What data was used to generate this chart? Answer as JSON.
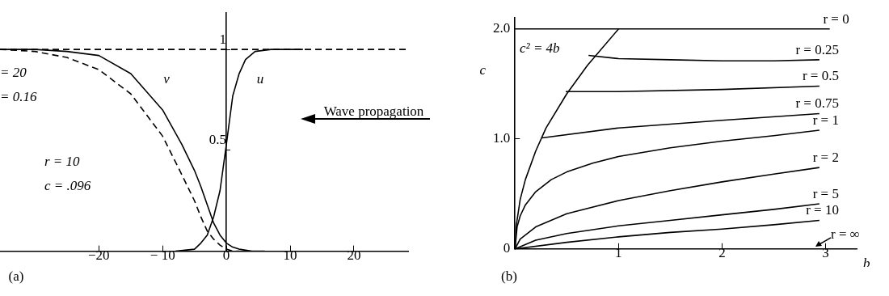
{
  "chart_data": [
    {
      "type": "line",
      "xlim": [
        -35.5,
        28.5
      ],
      "ylim": [
        0,
        1.18
      ],
      "xticks": [
        {
          "value": -20,
          "label": "−20"
        },
        {
          "value": -10,
          "label": "− 10"
        },
        0,
        10,
        20
      ],
      "yticks": [
        0.5,
        1
      ],
      "grid": false,
      "legend": false,
      "marker": "none",
      "ref_lines": [
        {
          "axis": "y",
          "value": 1,
          "line_style": "dashed",
          "color": "#000000"
        }
      ],
      "series": [
        {
          "color": "#000000",
          "line_style": "solid",
          "x": [
            -35.5,
            -30,
            -25,
            -20,
            -15,
            -10,
            -7,
            -5,
            -4,
            -3,
            -2,
            -1,
            0,
            1,
            2,
            4,
            6
          ],
          "values": [
            1,
            1,
            0.99,
            0.97,
            0.88,
            0.7,
            0.53,
            0.4,
            0.32,
            0.23,
            0.14,
            0.08,
            0.04,
            0.02,
            0.01,
            0,
            0
          ]
        },
        {
          "color": "#000000",
          "line_style": "dashed",
          "x": [
            -35.5,
            -30,
            -25,
            -20,
            -15,
            -10,
            -7,
            -5,
            -4,
            -3,
            -2,
            -1,
            0,
            1,
            2
          ],
          "values": [
            1,
            0.99,
            0.96,
            0.9,
            0.78,
            0.57,
            0.38,
            0.25,
            0.17,
            0.1,
            0.06,
            0.03,
            0.01,
            0,
            0
          ]
        },
        {
          "color": "#000000",
          "line_style": "solid",
          "x": [
            -8,
            -5,
            -4,
            -3,
            -2,
            -1,
            0,
            1,
            2,
            3,
            4.5,
            7,
            12
          ],
          "values": [
            0,
            0.01,
            0.04,
            0.08,
            0.17,
            0.3,
            0.53,
            0.77,
            0.88,
            0.95,
            0.99,
            1,
            1
          ]
        }
      ],
      "annotations": [
        "v",
        "u",
        "= 20",
        "= 0.16",
        "r = 10",
        "c = .096",
        "Wave propagation",
        "(a)"
      ]
    },
    {
      "type": "line",
      "xlim": [
        0,
        3.3
      ],
      "ylim": [
        0,
        2.1
      ],
      "xticks": [
        {
          "value": 0,
          "label": null
        },
        1,
        2,
        3
      ],
      "yticks": [
        0,
        {
          "value": 1,
          "label": "1.0"
        },
        {
          "value": 2,
          "label": "2.0"
        }
      ],
      "xlabel": "b",
      "ylabel": "c",
      "grid": false,
      "legend": false,
      "marker": "none",
      "series": [
        {
          "color": "#000000",
          "line_style": "solid",
          "x": [
            0,
            0.01,
            0.05,
            0.1,
            0.2,
            0.3,
            0.5,
            0.7,
            1
          ],
          "values": [
            0,
            0.2,
            0.45,
            0.63,
            0.89,
            1.1,
            1.41,
            1.67,
            2
          ]
        },
        {
          "name": "r = 0",
          "color": "#000000",
          "line_style": "solid",
          "x": [
            0,
            3.04
          ],
          "values": [
            2,
            2
          ]
        },
        {
          "name": "r = 0.25",
          "color": "#000000",
          "line_style": "solid",
          "x": [
            0.71,
            1,
            1.5,
            2,
            2.5,
            2.94
          ],
          "values": [
            1.76,
            1.73,
            1.72,
            1.71,
            1.71,
            1.72
          ]
        },
        {
          "name": "r = 0.5",
          "color": "#000000",
          "line_style": "solid",
          "x": [
            0.49,
            1,
            2,
            2.94
          ],
          "values": [
            1.43,
            1.43,
            1.45,
            1.48
          ]
        },
        {
          "name": "r = 0.75",
          "color": "#000000",
          "line_style": "solid",
          "x": [
            0.26,
            1,
            2,
            2.94
          ],
          "values": [
            1.01,
            1.1,
            1.17,
            1.23
          ]
        },
        {
          "name": "r = 1",
          "color": "#000000",
          "line_style": "solid",
          "x": [
            0,
            0.02,
            0.05,
            0.1,
            0.2,
            0.35,
            0.5,
            0.75,
            1,
            1.5,
            2,
            2.5,
            2.94
          ],
          "values": [
            0,
            0.2,
            0.3,
            0.4,
            0.52,
            0.63,
            0.7,
            0.78,
            0.84,
            0.92,
            0.98,
            1.03,
            1.08
          ]
        },
        {
          "name": "r = 2",
          "color": "#000000",
          "line_style": "solid",
          "x": [
            0,
            0.05,
            0.2,
            0.5,
            1,
            1.5,
            2,
            2.5,
            2.94
          ],
          "values": [
            0,
            0.09,
            0.2,
            0.32,
            0.44,
            0.53,
            0.61,
            0.68,
            0.74
          ]
        },
        {
          "name": "r = 5",
          "color": "#000000",
          "line_style": "solid",
          "x": [
            0,
            0.2,
            0.5,
            1,
            1.5,
            2,
            2.5,
            2.94
          ],
          "values": [
            0,
            0.08,
            0.14,
            0.21,
            0.26,
            0.31,
            0.36,
            0.41
          ]
        },
        {
          "name": "r = 10",
          "color": "#000000",
          "line_style": "solid",
          "x": [
            0,
            0.5,
            1,
            1.5,
            2,
            2.5,
            2.94
          ],
          "values": [
            0,
            0.06,
            0.11,
            0.15,
            0.18,
            0.22,
            0.26
          ]
        }
      ],
      "annotations": [
        "c² = 4b",
        "(b)",
        "r = ∞"
      ]
    }
  ]
}
